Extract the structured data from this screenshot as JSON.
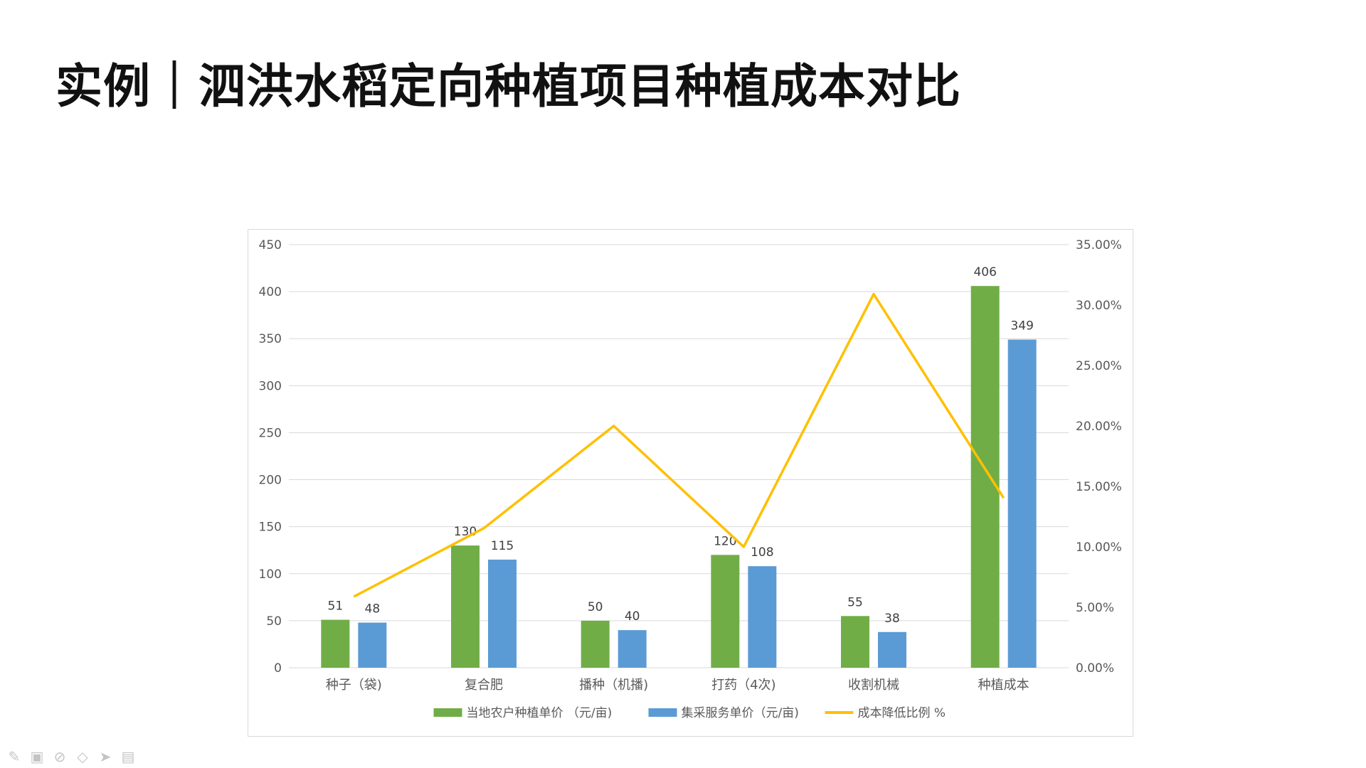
{
  "page": {
    "title": "实例｜泗洪水稻定向种植项目种植成本对比"
  },
  "toolbar": {
    "icons": [
      "pen-icon",
      "slide-icon",
      "highlighter-icon",
      "eraser-icon",
      "pointer-icon",
      "camera-icon"
    ]
  },
  "chart_data": {
    "type": "bar",
    "categories": [
      "种子（袋)",
      "复合肥",
      "播种（机播)",
      "打药（4次)",
      "收割机械",
      "种植成本"
    ],
    "series": [
      {
        "name": "当地农户种植单价 （元/亩)",
        "kind": "bar",
        "axis": "left",
        "color": "#70ad47",
        "values": [
          51,
          130,
          50,
          120,
          55,
          406
        ]
      },
      {
        "name": "集采服务单价（元/亩)",
        "kind": "bar",
        "axis": "left",
        "color": "#5b9bd5",
        "values": [
          48,
          115,
          40,
          108,
          38,
          349
        ]
      },
      {
        "name": "成本降低比例 %",
        "kind": "line",
        "axis": "right",
        "color": "#ffc000",
        "values": [
          5.88,
          11.54,
          20.0,
          10.0,
          30.91,
          14.04
        ]
      }
    ],
    "y_left": {
      "min": 0,
      "max": 450,
      "step": 50,
      "ticks": [
        "0",
        "50",
        "100",
        "150",
        "200",
        "250",
        "300",
        "350",
        "400",
        "450"
      ]
    },
    "y_right": {
      "min": 0,
      "max": 35,
      "step": 5,
      "ticks": [
        "0.00%",
        "5.00%",
        "10.00%",
        "15.00%",
        "20.00%",
        "25.00%",
        "30.00%",
        "35.00%"
      ]
    },
    "data_labels": {
      "bars": true,
      "line": false
    },
    "grid": true,
    "legend": "bottom",
    "xlabel": "",
    "ylabel": ""
  }
}
